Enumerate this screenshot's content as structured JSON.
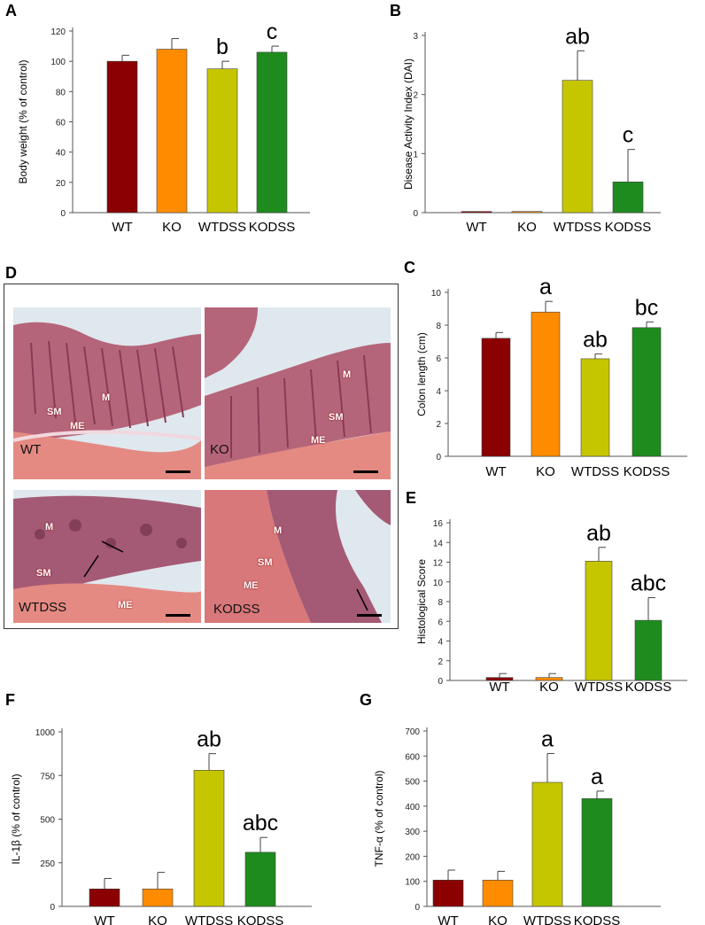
{
  "chart_data": [
    {
      "panel": "A",
      "type": "bar",
      "ylabel": "Body weight (% of control)",
      "yticks": [
        0,
        20,
        40,
        60,
        80,
        100,
        120
      ],
      "ylim": [
        0,
        120
      ],
      "categories": [
        "WT",
        "KO",
        "WTDSS",
        "KODSS"
      ],
      "values": [
        100,
        108,
        95,
        106
      ],
      "errors": [
        4,
        7,
        5,
        4
      ],
      "annotations": [
        "",
        "",
        "b",
        "c"
      ],
      "colors": [
        "#8b0000",
        "#ff8c00",
        "#c6c600",
        "#1e8b1e"
      ]
    },
    {
      "panel": "B",
      "type": "bar",
      "ylabel": "Disease Activity Index (DAI)",
      "yticks": [
        0,
        1,
        2,
        3
      ],
      "ylim": [
        0,
        3
      ],
      "categories": [
        "WT",
        "KO",
        "WTDSS",
        "KODSS"
      ],
      "values": [
        0.02,
        0.02,
        2.24,
        0.52
      ],
      "errors": [
        0,
        0,
        0.5,
        0.55
      ],
      "annotations": [
        "",
        "",
        "ab",
        "c"
      ],
      "colors": [
        "#8b0000",
        "#ff8c00",
        "#c6c600",
        "#1e8b1e"
      ]
    },
    {
      "panel": "C",
      "type": "bar",
      "ylabel": "Colon length (cm)",
      "yticks": [
        0,
        2,
        4,
        6,
        8,
        10
      ],
      "ylim": [
        0,
        10
      ],
      "categories": [
        "WT",
        "KO",
        "WTDSS",
        "KODSS"
      ],
      "values": [
        7.2,
        8.8,
        5.95,
        7.85
      ],
      "errors": [
        0.35,
        0.65,
        0.3,
        0.35
      ],
      "annotations": [
        "",
        "a",
        "ab",
        "bc"
      ],
      "colors": [
        "#8b0000",
        "#ff8c00",
        "#c6c600",
        "#1e8b1e"
      ]
    },
    {
      "panel": "E",
      "type": "bar",
      "ylabel": "Histological Score",
      "yticks": [
        0,
        2,
        4,
        6,
        8,
        10,
        12,
        14,
        16
      ],
      "ylim": [
        0,
        16
      ],
      "categories": [
        "WT",
        "KO",
        "WTDSS",
        "KODSS"
      ],
      "values": [
        0.3,
        0.3,
        12.1,
        6.1
      ],
      "errors": [
        0.4,
        0.4,
        1.4,
        2.3
      ],
      "annotations": [
        "",
        "",
        "ab",
        "abc"
      ],
      "colors": [
        "#8b0000",
        "#ff8c00",
        "#c6c600",
        "#1e8b1e"
      ]
    },
    {
      "panel": "F",
      "type": "bar",
      "ylabel": "IL-1β (% of control)",
      "yticks": [
        0,
        250,
        500,
        750,
        1000
      ],
      "ylim": [
        0,
        1000
      ],
      "categories": [
        "WT",
        "KO",
        "WTDSS",
        "KODSS"
      ],
      "values": [
        100,
        100,
        780,
        310
      ],
      "errors": [
        60,
        95,
        95,
        85
      ],
      "annotations": [
        "",
        "",
        "ab",
        "abc"
      ],
      "colors": [
        "#8b0000",
        "#ff8c00",
        "#c6c600",
        "#1e8b1e"
      ]
    },
    {
      "panel": "G",
      "type": "bar",
      "ylabel": "TNF-α (% of control)",
      "yticks": [
        0,
        100,
        200,
        300,
        400,
        500,
        600,
        700
      ],
      "ylim": [
        0,
        700
      ],
      "categories": [
        "WT",
        "KO",
        "WTDSS",
        "KODSS"
      ],
      "values": [
        105,
        105,
        495,
        430
      ],
      "errors": [
        40,
        35,
        115,
        30
      ],
      "annotations": [
        "",
        "",
        "a",
        "a"
      ],
      "colors": [
        "#8b0000",
        "#ff8c00",
        "#c6c600",
        "#1e8b1e"
      ]
    }
  ],
  "histology": {
    "panel": "D",
    "images": [
      {
        "label": "WT",
        "tissue_labels": [
          "M",
          "SM",
          "ME"
        ]
      },
      {
        "label": "KO",
        "tissue_labels": [
          "M",
          "SM",
          "ME"
        ]
      },
      {
        "label": "WTDSS",
        "tissue_labels": [
          "M",
          "SM",
          "ME"
        ]
      },
      {
        "label": "KODSS",
        "tissue_labels": [
          "M",
          "SM",
          "ME"
        ]
      }
    ]
  }
}
